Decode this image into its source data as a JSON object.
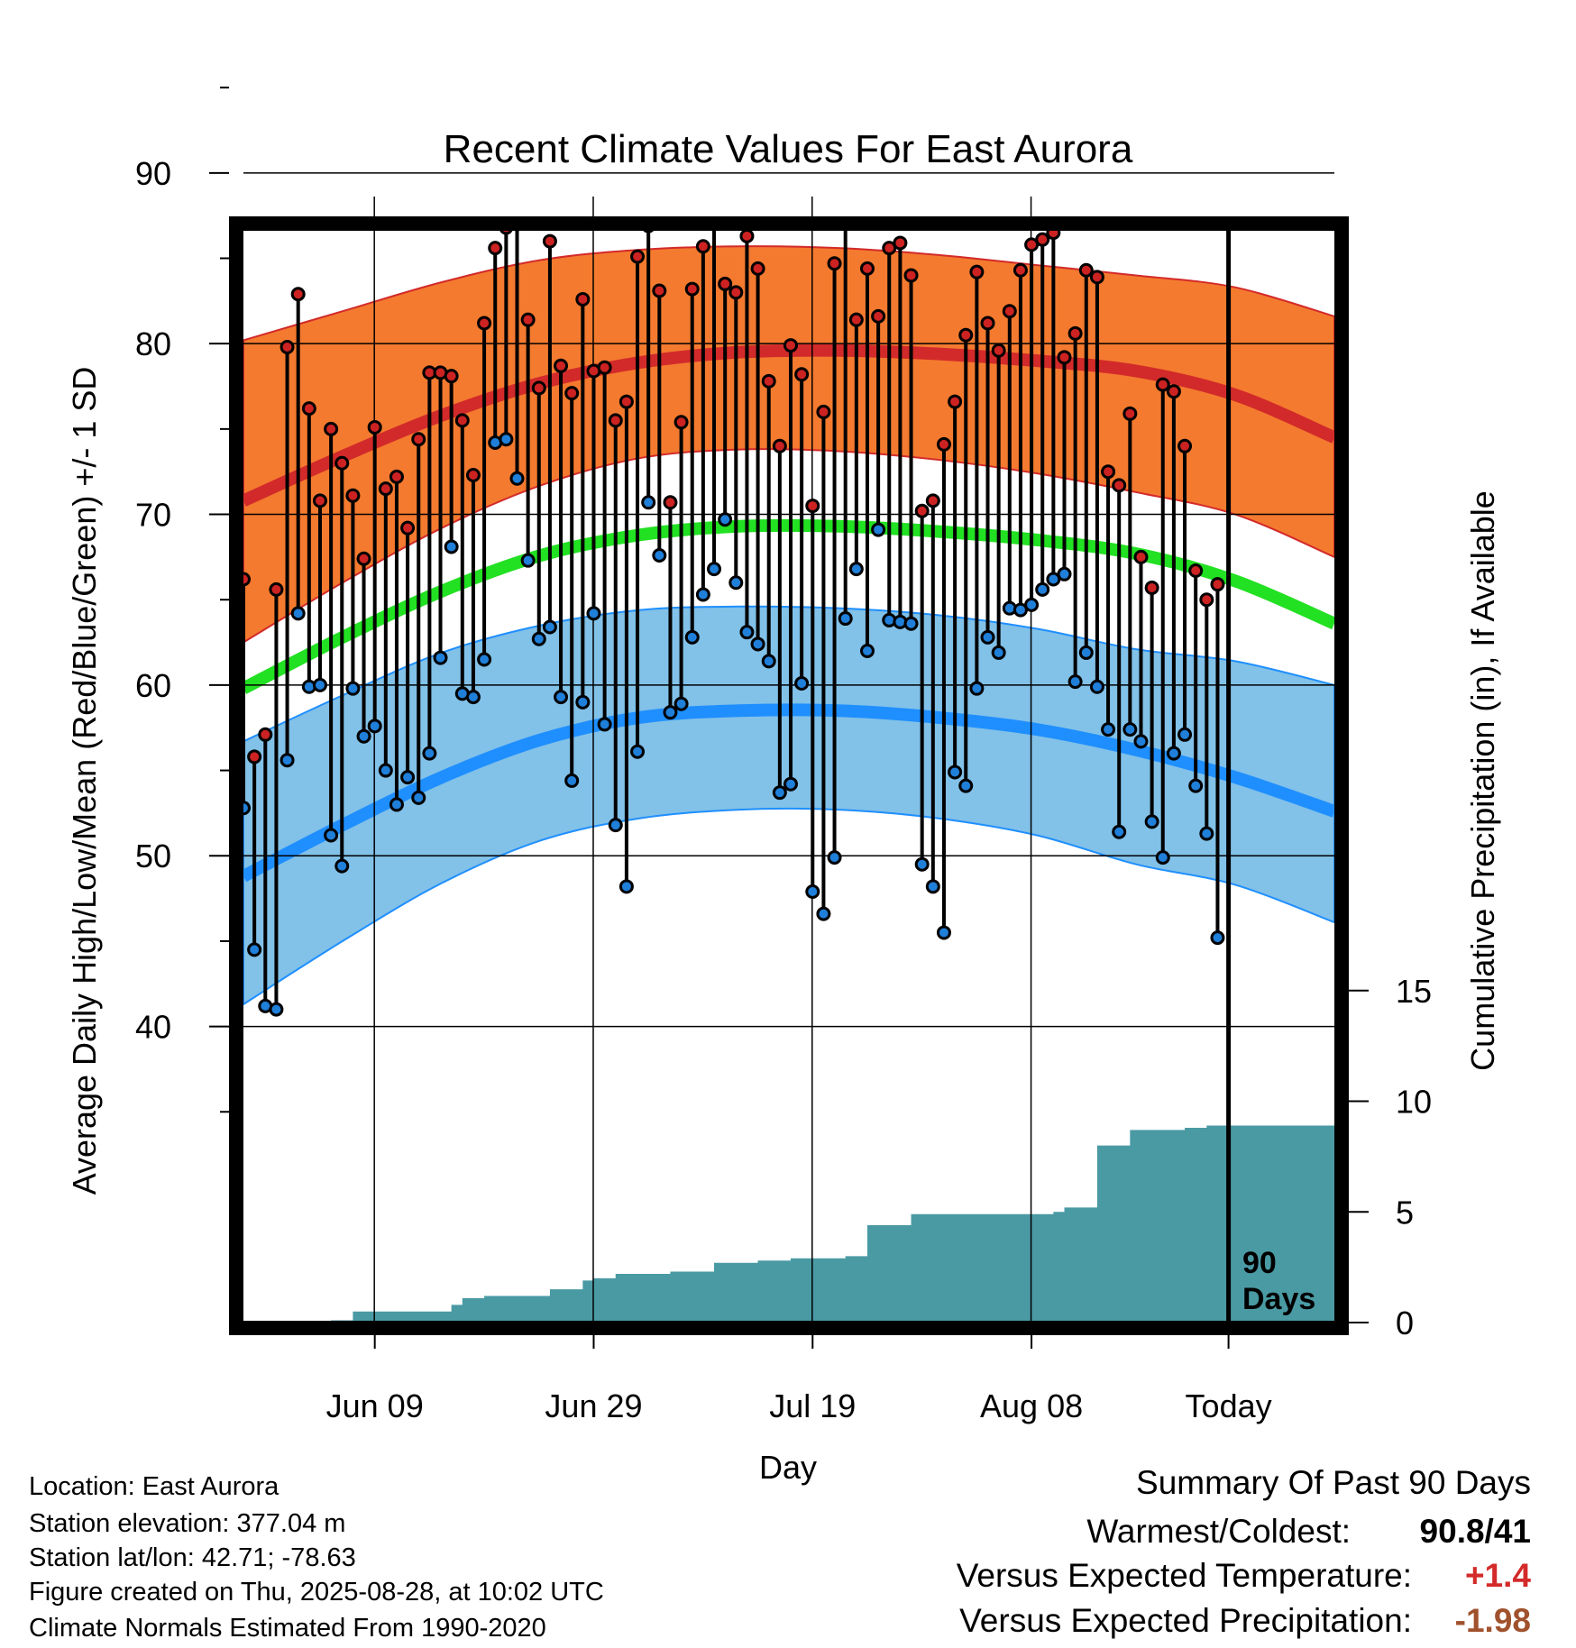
{
  "chart_data": {
    "type": "line",
    "title": "Recent Climate Values For East Aurora",
    "xlabel": "Day",
    "ylabel": "Average Daily High/Low/Mean (Red/Blue/Green) +/- 1 SD",
    "y2label": "Cumulative Precipitation (in), If Available",
    "ylim": [
      31,
      97
    ],
    "y2lim": [
      0,
      20
    ],
    "x_tick_labels": [
      "Jun 09",
      "Jun 29",
      "Jul 19",
      "Aug 08",
      "Today"
    ],
    "y_tick_labels": [
      "40",
      "50",
      "60",
      "70",
      "80",
      "90"
    ],
    "y2_tick_labels": [
      "0",
      "5",
      "10",
      "15"
    ],
    "grid": true,
    "today_marker_label": "90 Days",
    "normals": {
      "high_mean": [
        70.8,
        73.4,
        75.8,
        77.7,
        78.9,
        79.5,
        79.6,
        79.4,
        79.0,
        78.4,
        77.0,
        74.5
      ],
      "high_upper": [
        80.2,
        81.9,
        83.6,
        84.9,
        85.5,
        85.7,
        85.6,
        85.2,
        84.6,
        84.0,
        83.3,
        81.6
      ],
      "high_lower": [
        62.5,
        66.0,
        69.2,
        71.7,
        73.3,
        73.8,
        73.7,
        73.2,
        72.4,
        71.3,
        70.0,
        67.5
      ],
      "mean": [
        59.8,
        62.8,
        65.5,
        67.6,
        68.8,
        69.3,
        69.3,
        69.0,
        68.5,
        67.7,
        66.1,
        63.6
      ],
      "low_mean": [
        48.8,
        51.8,
        54.6,
        56.8,
        58.1,
        58.5,
        58.5,
        58.1,
        57.4,
        56.2,
        54.6,
        52.6
      ],
      "low_upper": [
        56.7,
        59.4,
        61.9,
        63.5,
        64.4,
        64.6,
        64.5,
        64.1,
        63.3,
        62.1,
        61.4,
        60.0
      ],
      "low_lower": [
        41.3,
        45.0,
        48.4,
        50.9,
        52.2,
        52.7,
        52.7,
        52.2,
        51.2,
        49.5,
        48.3,
        46.1
      ]
    },
    "series": [
      {
        "name": "High",
        "color": "#cc2222",
        "values": [
          66.2,
          55.8,
          57.1,
          65.6,
          79.8,
          82.9,
          76.2,
          70.8,
          75.0,
          73.0,
          71.1,
          67.4,
          75.1,
          71.5,
          72.2,
          69.2,
          74.4,
          78.3,
          78.3,
          78.1,
          75.5,
          72.3,
          81.2,
          85.6,
          86.8,
          87.0,
          81.4,
          77.4,
          86.0,
          78.7,
          77.1,
          82.6,
          78.4,
          78.6,
          75.5,
          76.6,
          85.1,
          86.9,
          83.1,
          70.7,
          75.4,
          83.2,
          85.7,
          90.8,
          83.5,
          83.0,
          86.3,
          84.4,
          77.8,
          74.0,
          79.9,
          78.2,
          70.5,
          76.0,
          84.7,
          88.4,
          81.4,
          84.4,
          81.6,
          85.6,
          85.9,
          84.0,
          70.2,
          70.8,
          74.1,
          76.6,
          80.5,
          84.2,
          81.2,
          79.6,
          81.9,
          84.3,
          85.8,
          86.1,
          86.5,
          79.2,
          80.6,
          84.3,
          83.9,
          72.5,
          71.7,
          75.9,
          67.5,
          65.7,
          77.6,
          77.2,
          74.0,
          66.7,
          65.0,
          65.9
        ]
      },
      {
        "name": "Low",
        "color": "#1f7fd9",
        "values": [
          52.8,
          44.5,
          41.2,
          41.0,
          55.6,
          64.2,
          59.9,
          60.0,
          51.2,
          49.4,
          59.8,
          57.0,
          57.6,
          55.0,
          53.0,
          54.6,
          53.4,
          56.0,
          61.6,
          68.1,
          59.5,
          59.3,
          61.5,
          74.2,
          74.4,
          72.1,
          67.3,
          62.7,
          63.4,
          59.3,
          54.4,
          59.0,
          64.2,
          57.7,
          51.8,
          48.2,
          56.1,
          70.7,
          67.6,
          58.4,
          58.9,
          62.8,
          65.3,
          66.8,
          69.7,
          66.0,
          63.1,
          62.4,
          61.4,
          53.7,
          54.2,
          60.1,
          47.9,
          46.6,
          49.9,
          63.9,
          66.8,
          62.0,
          69.1,
          63.8,
          63.7,
          63.6,
          49.5,
          48.2,
          45.5,
          54.9,
          54.1,
          59.8,
          62.8,
          61.9,
          64.5,
          64.4,
          64.7,
          65.6,
          66.2,
          66.5,
          60.2,
          61.9,
          59.9,
          57.4,
          51.4,
          57.4,
          56.7,
          52.0,
          49.9,
          56.0,
          57.1,
          54.1,
          51.3,
          45.2
        ]
      }
    ],
    "precipitation_cumulative": [
      0,
      0,
      0,
      0,
      0,
      0,
      0,
      0,
      0.1,
      0.1,
      0.5,
      0.5,
      0.5,
      0.5,
      0.5,
      0.5,
      0.5,
      0.5,
      0.5,
      0.8,
      1.1,
      1.1,
      1.2,
      1.2,
      1.2,
      1.2,
      1.2,
      1.2,
      1.5,
      1.5,
      1.5,
      1.9,
      2.0,
      2.0,
      2.2,
      2.2,
      2.2,
      2.2,
      2.2,
      2.3,
      2.3,
      2.3,
      2.3,
      2.7,
      2.7,
      2.7,
      2.7,
      2.8,
      2.8,
      2.8,
      2.9,
      2.9,
      2.9,
      2.9,
      2.9,
      3.0,
      3.0,
      4.4,
      4.4,
      4.4,
      4.4,
      4.9,
      4.9,
      4.9,
      4.9,
      4.9,
      4.9,
      4.9,
      4.9,
      4.9,
      4.9,
      4.9,
      4.9,
      4.9,
      5.0,
      5.2,
      5.2,
      5.2,
      8.0,
      8.0,
      8.0,
      8.7,
      8.7,
      8.7,
      8.7,
      8.7,
      8.8,
      8.8,
      8.9,
      8.9
    ]
  },
  "info": {
    "location": "Location: East Aurora",
    "elevation": "Station elevation: 377.04 m",
    "latlon": "Station lat/lon: 42.71; -78.63",
    "created": "Figure created on Thu, 2025-08-28, at 10:02 UTC",
    "normals_period": "Climate Normals Estimated From 1990-2020"
  },
  "summary": {
    "heading": "Summary Of Past 90 Days",
    "warmest_coldest_label": "Warmest/Coldest:",
    "warmest_coldest_value": "90.8/41",
    "temp_label": "Versus Expected Temperature:",
    "temp_value": "+1.4",
    "temp_color": "#d42a2a",
    "precip_label": "Versus Expected Precipitation:",
    "precip_value": "-1.98",
    "precip_color": "#a0522d"
  },
  "colors": {
    "high_band": "#f47a2f",
    "high_line": "#d22a2a",
    "low_band": "#82c1e8",
    "low_line": "#1f8fff",
    "mean_line": "#22e022",
    "precip_fill": "#4a9aa4"
  }
}
